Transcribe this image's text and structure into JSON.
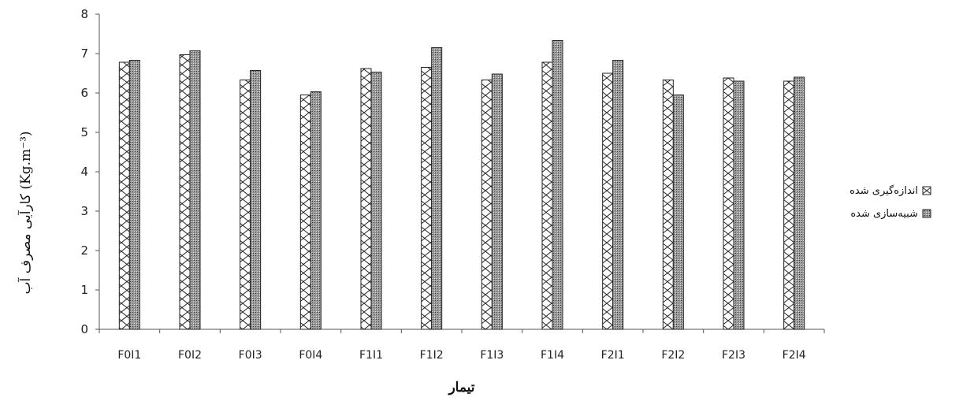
{
  "chart_data": {
    "type": "bar",
    "categories": [
      "F0I1",
      "F0I2",
      "F0I3",
      "F0I4",
      "F1I1",
      "F1I2",
      "F1I3",
      "F1I4",
      "F2I1",
      "F2I2",
      "F2I3",
      "F2I4"
    ],
    "series": [
      {
        "name": "اندازه‌گیری شده",
        "values": [
          6.78,
          6.97,
          6.33,
          5.95,
          6.62,
          6.65,
          6.33,
          6.78,
          6.5,
          6.33,
          6.38,
          6.3
        ]
      },
      {
        "name": "شبیه‌سازی شده",
        "values": [
          6.83,
          7.07,
          6.57,
          6.03,
          6.53,
          7.15,
          6.48,
          7.33,
          6.83,
          5.95,
          6.3,
          6.4
        ]
      }
    ],
    "xlabel": "تیمار",
    "ylabel": "کارآیی مصرف آب (Kg.m⁻³)",
    "ylim": [
      0,
      8
    ],
    "yticks": [
      0,
      1,
      2,
      3,
      4,
      5,
      6,
      7,
      8
    ],
    "grid": false,
    "legend_position": "right"
  }
}
